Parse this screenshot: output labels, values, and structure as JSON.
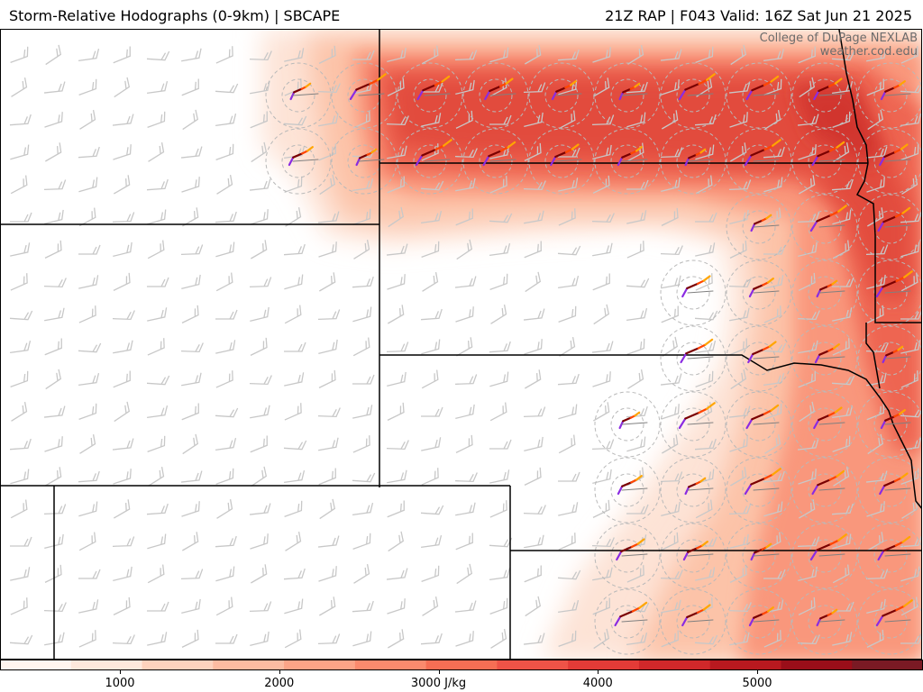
{
  "header": {
    "title_left": "Storm-Relative Hodographs (0-9km) | SBCAPE",
    "title_right": "21Z RAP | F043 Valid: 16Z Sat Jun 21 2025"
  },
  "credit": {
    "line1": "College of DuPage NEXLAB",
    "line2": "weather.cod.edu"
  },
  "colorbar": {
    "units": "J/kg",
    "ticks": [
      {
        "value": 1000,
        "label": "1000"
      },
      {
        "value": 2000,
        "label": "2000"
      },
      {
        "value": 3000,
        "label": "3000 J/kg"
      },
      {
        "value": 4000,
        "label": "4000"
      },
      {
        "value": 5000,
        "label": "5000"
      }
    ],
    "colors": [
      "#fff5f0",
      "#fee8dc",
      "#fdd2bd",
      "#fcbba1",
      "#fca487",
      "#fb8a6d",
      "#f66e54",
      "#ee5347",
      "#e33b37",
      "#d1282a",
      "#b8191f",
      "#9a0e19",
      "#7a1a24"
    ]
  },
  "hodograph_colors": [
    "#8a2be2",
    "#7a0000",
    "#ff4500",
    "#ffa500"
  ]
}
